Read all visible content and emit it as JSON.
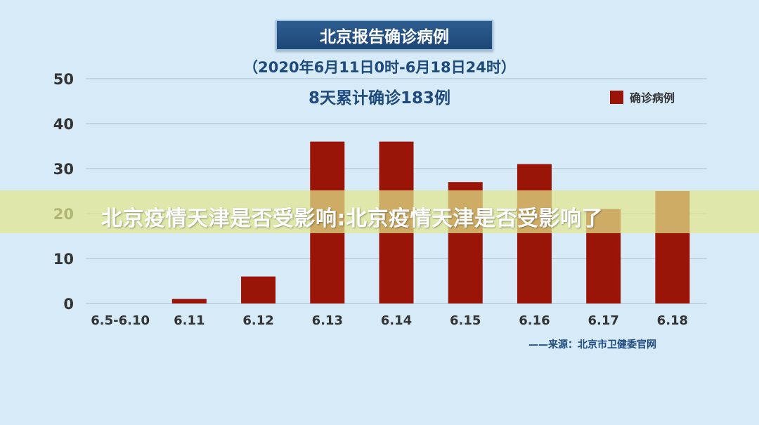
{
  "chart_data": {
    "type": "bar",
    "title": "北京报告确诊病例",
    "subtitle": "（2020年6月11日0时-6月18日24时）",
    "summary": "8天累计确诊183例",
    "categories": [
      "6.5-6.10",
      "6.11",
      "6.12",
      "6.13",
      "6.14",
      "6.15",
      "6.16",
      "6.17",
      "6.18"
    ],
    "series": [
      {
        "name": "确诊病例",
        "values": [
          0,
          1,
          6,
          36,
          36,
          27,
          31,
          21,
          25
        ]
      }
    ],
    "yticks": [
      0,
      10,
      20,
      30,
      40,
      50
    ],
    "ylim": [
      0,
      50
    ],
    "grid": true,
    "legend": "top-right",
    "source": "——来源：北京市卫健委官网",
    "colors": {
      "bar": "#9a1407",
      "grid": "#a9bdd0",
      "tick": "#333333"
    }
  },
  "overlay": {
    "text": "北京疫情天津是否受影响:北京疫情天津是否受影响了"
  }
}
